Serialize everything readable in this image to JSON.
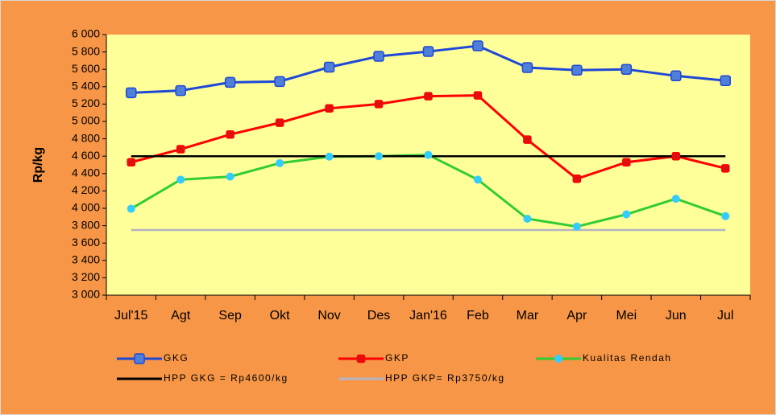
{
  "chart_data": {
    "type": "line",
    "y_label": "Rp/kg",
    "categories": [
      "Jul'15",
      "Agt",
      "Sep",
      "Okt",
      "Nov",
      "Des",
      "Jan'16",
      "Feb",
      "Mar",
      "Apr",
      "Mei",
      "Jun",
      "Jul"
    ],
    "series": [
      {
        "name": "GKG",
        "color": "#1f48d6",
        "marker": "square",
        "marker_color": "#4f7fd9",
        "values": [
          5330,
          5355,
          5450,
          5460,
          5625,
          5750,
          5805,
          5870,
          5620,
          5590,
          5600,
          5525,
          5470
        ]
      },
      {
        "name": "GKP",
        "color": "#ff0000",
        "marker": "square",
        "marker_color": "#e01010",
        "values": [
          4530,
          4680,
          4850,
          4985,
          5150,
          5200,
          5290,
          5300,
          4790,
          4340,
          4530,
          4600,
          4460
        ]
      },
      {
        "name": "Kualitas Rendah",
        "color": "#33cc33",
        "marker": "circle",
        "marker_color": "#33ccff",
        "values": [
          3995,
          4330,
          4365,
          4520,
          4595,
          4600,
          4615,
          4330,
          3880,
          3790,
          3930,
          4110,
          3910
        ]
      },
      {
        "name": "HPP GKG = Rp4600/kg",
        "color": "#000000",
        "marker": "none",
        "values": [
          4600,
          4600,
          4600,
          4600,
          4600,
          4600,
          4600,
          4600,
          4600,
          4600,
          4600,
          4600,
          4600
        ]
      },
      {
        "name": "HPP GKP= Rp3750/kg",
        "color": "#b4b4c4",
        "marker": "none",
        "values": [
          3750,
          3750,
          3750,
          3750,
          3750,
          3750,
          3750,
          3750,
          3750,
          3750,
          3750,
          3750,
          3750
        ]
      }
    ],
    "ylim": [
      3000,
      6000
    ],
    "yticks": [
      {
        "value": 3000,
        "label": "3 000"
      },
      {
        "value": 3200,
        "label": "3 200"
      },
      {
        "value": 3400,
        "label": "3 400"
      },
      {
        "value": 3600,
        "label": "3 600"
      },
      {
        "value": 3800,
        "label": "3 800"
      },
      {
        "value": 4000,
        "label": "4 000"
      },
      {
        "value": 4200,
        "label": "4 200"
      },
      {
        "value": 4400,
        "label": "4 400"
      },
      {
        "value": 4600,
        "label": "4 600"
      },
      {
        "value": 4800,
        "label": "4 800"
      },
      {
        "value": 5000,
        "label": "5 000"
      },
      {
        "value": 5200,
        "label": "5 200"
      },
      {
        "value": 5400,
        "label": "5 400"
      },
      {
        "value": 5600,
        "label": "5 600"
      },
      {
        "value": 5800,
        "label": "5 800"
      },
      {
        "value": 6000,
        "label": "6 000"
      }
    ],
    "grid": false,
    "legend": "bottom"
  }
}
